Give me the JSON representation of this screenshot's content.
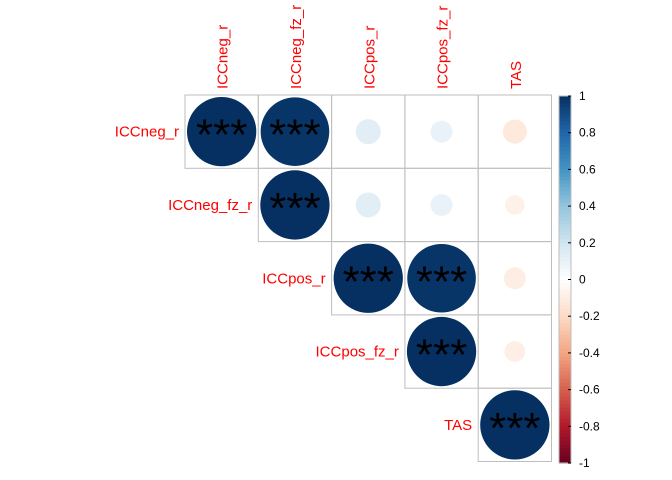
{
  "chart_data": {
    "type": "heatmap",
    "subtype": "corrplot-upper-circle",
    "variables": [
      "ICCneg_r",
      "ICCneg_fz_r",
      "ICCpos_r",
      "ICCpos_fz_r",
      "TAS"
    ],
    "matrix": [
      [
        1.0,
        0.98,
        0.13,
        0.1,
        -0.12
      ],
      [
        0.98,
        1.0,
        0.13,
        0.1,
        -0.08
      ],
      [
        0.13,
        0.13,
        1.0,
        0.98,
        -0.1
      ],
      [
        0.1,
        0.1,
        0.98,
        1.0,
        -0.09
      ],
      [
        -0.12,
        -0.08,
        -0.1,
        -0.09,
        1.0
      ]
    ],
    "significance": [
      [
        "***",
        "***",
        "",
        "",
        ""
      ],
      [
        "",
        "***",
        "",
        "",
        ""
      ],
      [
        "",
        "",
        "***",
        "***",
        ""
      ],
      [
        "",
        "",
        "",
        "***",
        ""
      ],
      [
        "",
        "",
        "",
        "",
        "***"
      ]
    ],
    "colorbar": {
      "min": -1,
      "max": 1,
      "tick_labels": [
        "1",
        "0.8",
        "0.6",
        "0.4",
        "0.2",
        "0",
        "-0.2",
        "-0.4",
        "-0.6",
        "-0.8",
        "-1"
      ]
    },
    "colors": {
      "label": "#FF0000",
      "grid": "#BEBEBE",
      "negative_end": "#67001F",
      "positive_end": "#053061"
    },
    "shows_lower_triangle": false
  }
}
